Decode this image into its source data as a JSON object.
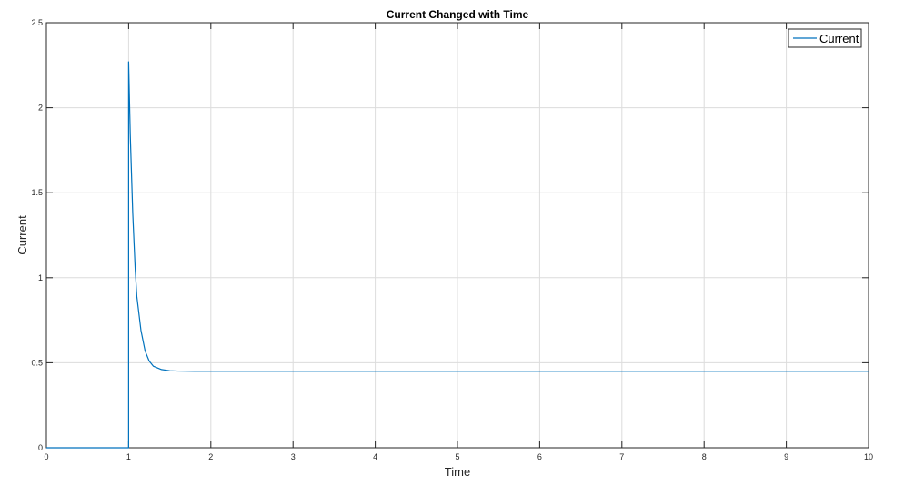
{
  "chart_data": {
    "type": "line",
    "title": "Current Changed with Time",
    "xlabel": "Time",
    "ylabel": "Current",
    "xlim": [
      0,
      10
    ],
    "ylim": [
      0,
      2.5
    ],
    "xticks": [
      "0",
      "1",
      "2",
      "3",
      "4",
      "5",
      "6",
      "7",
      "8",
      "9",
      "10"
    ],
    "yticks": [
      "0",
      "0.5",
      "1",
      "1.5",
      "2",
      "2.5"
    ],
    "grid": true,
    "legend_position": "top-right",
    "series": [
      {
        "name": "Current",
        "color": "#0072BD",
        "x": [
          0,
          1,
          1,
          1.02,
          1.05,
          1.08,
          1.1,
          1.15,
          1.2,
          1.25,
          1.3,
          1.4,
          1.5,
          1.6,
          1.8,
          2,
          3,
          4,
          5,
          6,
          7,
          8,
          9,
          10
        ],
        "y": [
          0,
          0,
          2.27,
          1.84,
          1.38,
          1.05,
          0.89,
          0.69,
          0.57,
          0.51,
          0.48,
          0.46,
          0.453,
          0.451,
          0.45,
          0.45,
          0.45,
          0.45,
          0.45,
          0.45,
          0.45,
          0.45,
          0.45,
          0.45
        ]
      }
    ]
  }
}
